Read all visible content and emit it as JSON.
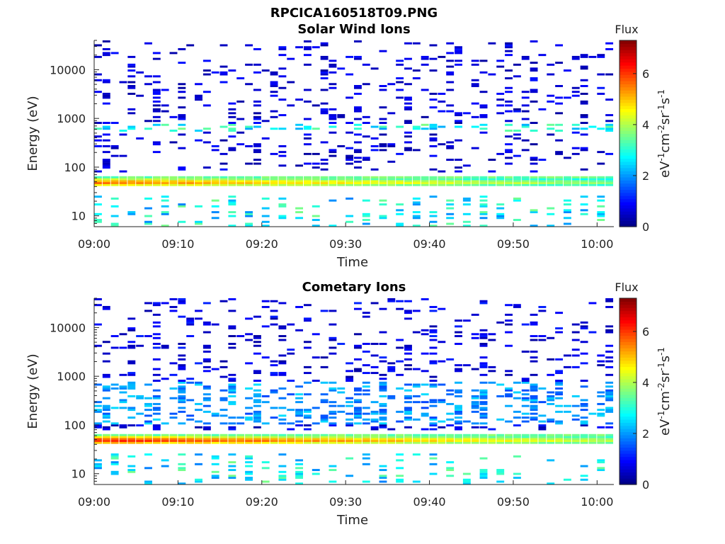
{
  "figure_title": "RPCICA160518T09.PNG",
  "chart_data": [
    {
      "type": "heatmap",
      "title": "Solar Wind Ions",
      "xlabel": "Time",
      "ylabel": "Energy (eV)",
      "x_ticks": [
        "09:00",
        "09:10",
        "09:20",
        "09:30",
        "09:40",
        "09:50",
        "10:00"
      ],
      "x_range_minutes": [
        0,
        62
      ],
      "y_ticks": [
        "10",
        "100",
        "1000",
        "10000"
      ],
      "y_scale": "log",
      "y_range": [
        6,
        40000
      ],
      "colorbar": {
        "title": "Flux",
        "label": "eV-1cm-2sr-1s-1",
        "range": [
          0,
          7.3
        ],
        "ticks": [
          "0",
          "2",
          "4",
          "6"
        ],
        "colormap": "jet"
      },
      "features": {
        "ion_band_energy_eV": [
          40,
          65
        ],
        "ion_band_peak_log_flux": 5.6,
        "moderate_band_energy_eV": [
          550,
          800
        ],
        "moderate_band_log_flux": 3.3,
        "background_log_flux": 0.7
      }
    },
    {
      "type": "heatmap",
      "title": "Cometary Ions",
      "xlabel": "Time",
      "ylabel": "Energy (eV)",
      "x_ticks": [
        "09:00",
        "09:10",
        "09:20",
        "09:30",
        "09:40",
        "09:50",
        "10:00"
      ],
      "x_range_minutes": [
        0,
        62
      ],
      "y_ticks": [
        "10",
        "100",
        "1000",
        "10000"
      ],
      "y_scale": "log",
      "y_range": [
        6,
        40000
      ],
      "colorbar": {
        "title": "Flux",
        "label": "eV-1cm-2sr-1s-1",
        "range": [
          0,
          7.3
        ],
        "ticks": [
          "0",
          "2",
          "4",
          "6"
        ],
        "colormap": "jet"
      },
      "features": {
        "ion_band_energy_eV": [
          40,
          65
        ],
        "ion_band_peak_log_flux": 6.3,
        "moderate_band_energy_eV": [
          100,
          800
        ],
        "moderate_band_log_flux": 2.3,
        "background_log_flux": 0.8
      }
    }
  ]
}
